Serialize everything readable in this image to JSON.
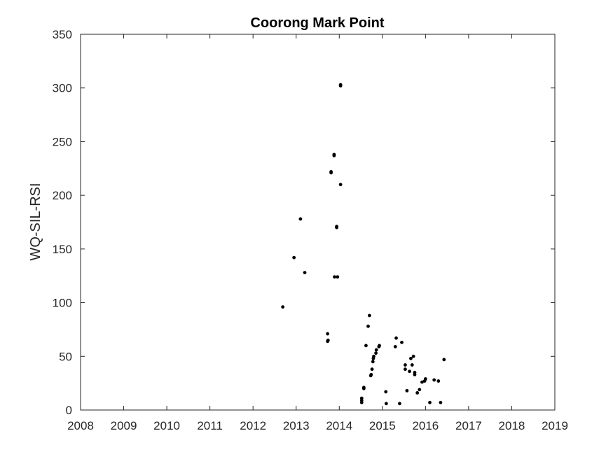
{
  "chart_data": {
    "type": "scatter",
    "title": "Coorong Mark Point",
    "xlabel": "",
    "ylabel": "WQ-SIL-RSI",
    "xlim": [
      2008,
      2019
    ],
    "ylim": [
      0,
      350
    ],
    "xticks": [
      "2008",
      "2009",
      "2010",
      "2011",
      "2012",
      "2013",
      "2014",
      "2015",
      "2016",
      "2017",
      "2018",
      "2019"
    ],
    "yticks": [
      "0",
      "50",
      "100",
      "150",
      "200",
      "250",
      "300",
      "350"
    ],
    "grid": false,
    "marker_color": "#000000",
    "series": [
      {
        "name": "",
        "points": [
          [
            2012.69,
            96
          ],
          [
            2012.95,
            142
          ],
          [
            2013.1,
            178
          ],
          [
            2013.2,
            128
          ],
          [
            2013.73,
            71
          ],
          [
            2013.73,
            64
          ],
          [
            2013.74,
            65
          ],
          [
            2013.81,
            221
          ],
          [
            2013.81,
            222
          ],
          [
            2013.88,
            237
          ],
          [
            2013.88,
            238
          ],
          [
            2013.89,
            124
          ],
          [
            2013.94,
            170
          ],
          [
            2013.94,
            171
          ],
          [
            2013.96,
            124
          ],
          [
            2014.03,
            302
          ],
          [
            2014.03,
            303
          ],
          [
            2014.03,
            210
          ],
          [
            2014.52,
            7
          ],
          [
            2014.52,
            9
          ],
          [
            2014.52,
            11
          ],
          [
            2014.57,
            20
          ],
          [
            2014.57,
            21
          ],
          [
            2014.62,
            60
          ],
          [
            2014.67,
            78
          ],
          [
            2014.7,
            88
          ],
          [
            2014.73,
            32
          ],
          [
            2014.74,
            33
          ],
          [
            2014.76,
            38
          ],
          [
            2014.78,
            45
          ],
          [
            2014.79,
            48
          ],
          [
            2014.8,
            50
          ],
          [
            2014.85,
            53
          ],
          [
            2014.86,
            56
          ],
          [
            2014.92,
            59
          ],
          [
            2014.93,
            60
          ],
          [
            2015.08,
            17
          ],
          [
            2015.09,
            6
          ],
          [
            2015.3,
            59
          ],
          [
            2015.32,
            67
          ],
          [
            2015.4,
            6
          ],
          [
            2015.45,
            63
          ],
          [
            2015.53,
            42
          ],
          [
            2015.53,
            38
          ],
          [
            2015.57,
            18
          ],
          [
            2015.63,
            36
          ],
          [
            2015.66,
            48
          ],
          [
            2015.69,
            42
          ],
          [
            2015.72,
            50
          ],
          [
            2015.75,
            35
          ],
          [
            2015.75,
            33
          ],
          [
            2015.81,
            16
          ],
          [
            2015.86,
            19
          ],
          [
            2015.92,
            26
          ],
          [
            2015.98,
            27
          ],
          [
            2016.0,
            29
          ],
          [
            2016.1,
            7
          ],
          [
            2016.2,
            28
          ],
          [
            2016.3,
            27
          ],
          [
            2016.35,
            7
          ],
          [
            2016.43,
            47
          ]
        ]
      }
    ]
  }
}
